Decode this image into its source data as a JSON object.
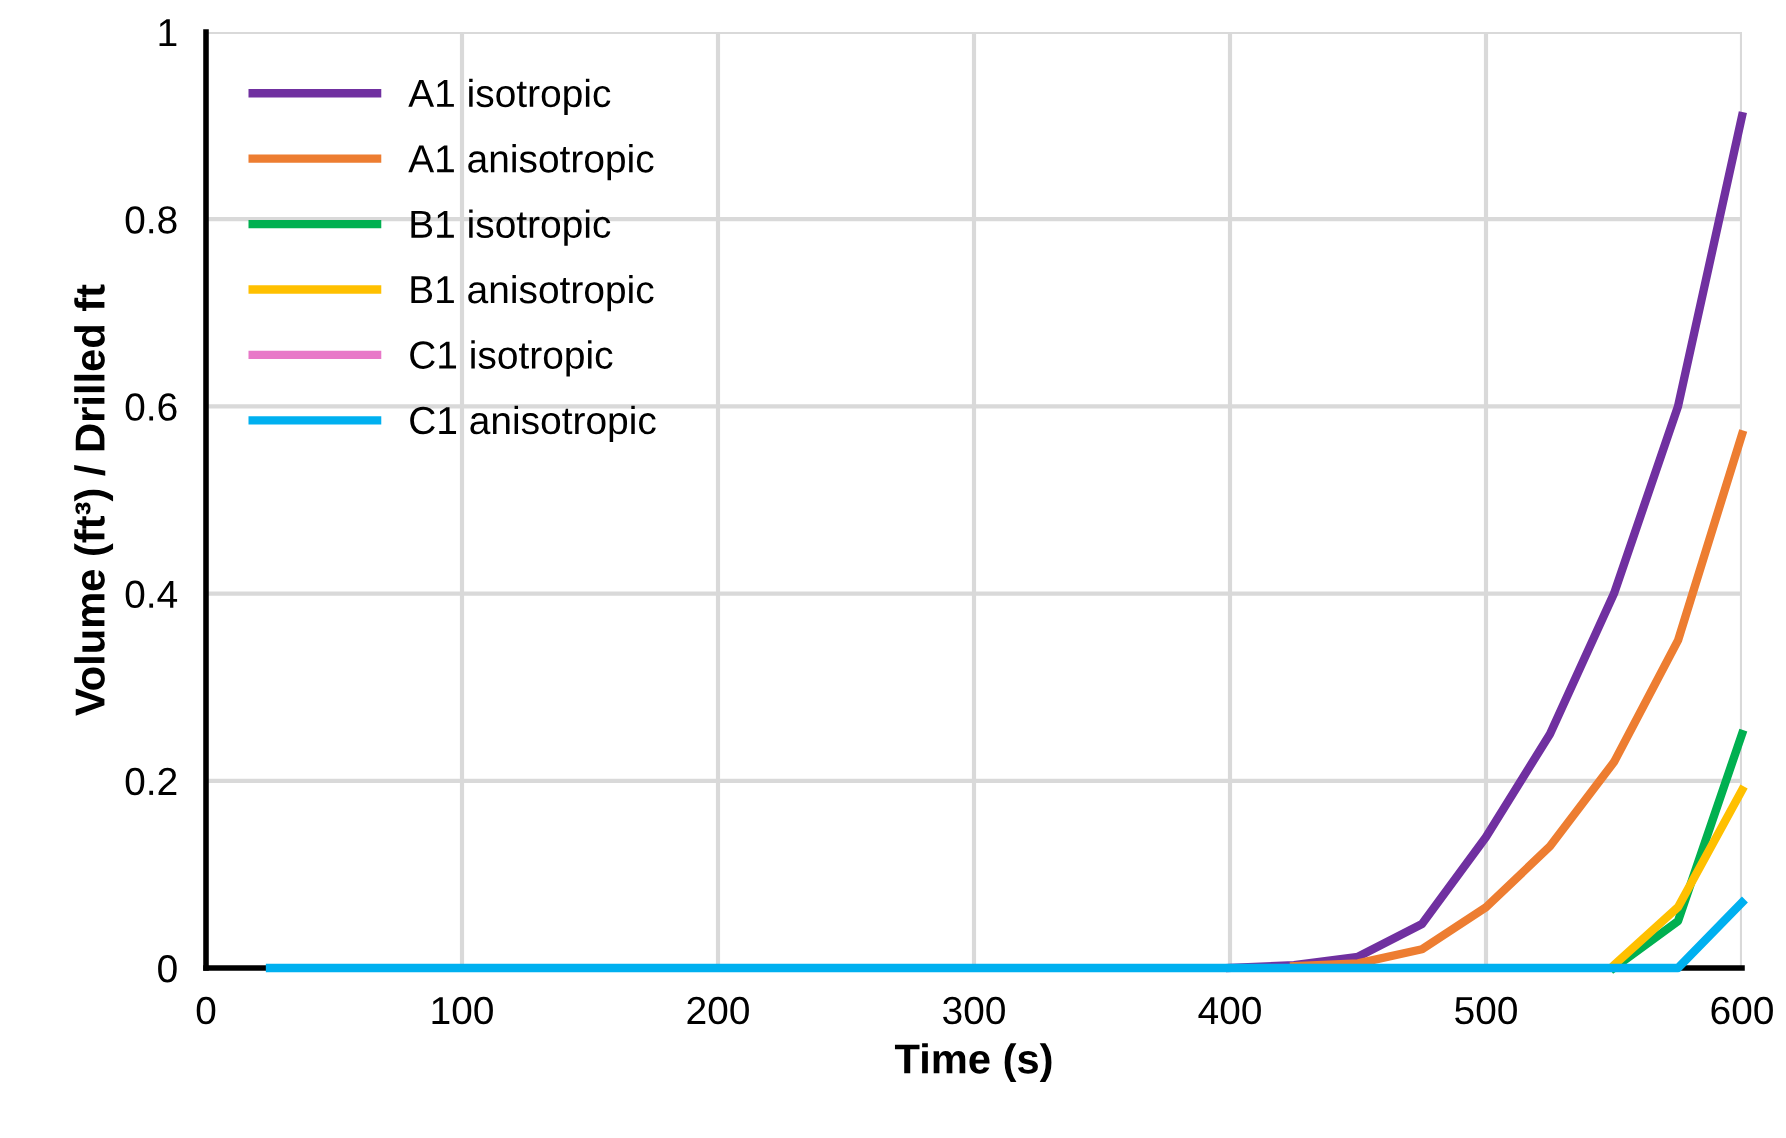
{
  "chart_data": {
    "type": "line",
    "xlabel": "Time (s)",
    "ylabel": "Volume (ft³) / Drilled ft",
    "x": [
      25,
      50,
      75,
      100,
      125,
      150,
      175,
      200,
      225,
      250,
      275,
      300,
      325,
      350,
      375,
      400,
      425,
      450,
      475,
      500,
      525,
      550,
      575,
      600
    ],
    "series": [
      {
        "name": "A1 isotropic",
        "color": "#7030a0",
        "values": [
          null,
          null,
          null,
          null,
          null,
          null,
          null,
          null,
          null,
          null,
          null,
          null,
          null,
          null,
          null,
          0,
          0.003,
          0.012,
          0.047,
          0.14,
          0.25,
          0.4,
          0.6,
          0.91
        ]
      },
      {
        "name": "A1 anisotropic",
        "color": "#ed7d31",
        "values": [
          null,
          null,
          null,
          null,
          null,
          null,
          null,
          null,
          null,
          null,
          null,
          null,
          null,
          null,
          null,
          null,
          0.002,
          0.005,
          0.02,
          0.065,
          0.13,
          0.22,
          0.35,
          0.57
        ]
      },
      {
        "name": "B1 isotropic",
        "color": "#00b050",
        "values": [
          null,
          null,
          null,
          null,
          null,
          null,
          null,
          null,
          null,
          null,
          null,
          null,
          null,
          null,
          null,
          null,
          null,
          null,
          null,
          null,
          null,
          0,
          0.05,
          0.25
        ]
      },
      {
        "name": "B1 anisotropic",
        "color": "#ffc000",
        "values": [
          null,
          null,
          null,
          null,
          null,
          null,
          null,
          null,
          null,
          null,
          null,
          null,
          null,
          null,
          null,
          null,
          null,
          null,
          null,
          null,
          null,
          0.003,
          0.065,
          0.19
        ]
      },
      {
        "name": "C1 isotropic",
        "color": "#e878c8",
        "values": [
          null,
          null,
          null,
          null,
          null,
          null,
          null,
          null,
          null,
          null,
          null,
          null,
          null,
          null,
          null,
          null,
          null,
          null,
          null,
          null,
          null,
          null,
          null,
          null
        ]
      },
      {
        "name": "C1 anisotropic",
        "color": "#00b0f0",
        "values": [
          0,
          0,
          0,
          0,
          0,
          0,
          0,
          0,
          0,
          0,
          0,
          0,
          0,
          0,
          0,
          0,
          0,
          0,
          0,
          0,
          0,
          0,
          0,
          0.07
        ]
      }
    ],
    "xlim": [
      0,
      600
    ],
    "xticks": [
      0,
      100,
      200,
      300,
      400,
      500,
      600
    ],
    "ylim": [
      0,
      1
    ],
    "yticks": [
      0,
      0.2,
      0.4,
      0.6,
      0.8,
      1
    ],
    "grid": true,
    "legend": "top left",
    "marker": "none",
    "line_style": "solid"
  }
}
